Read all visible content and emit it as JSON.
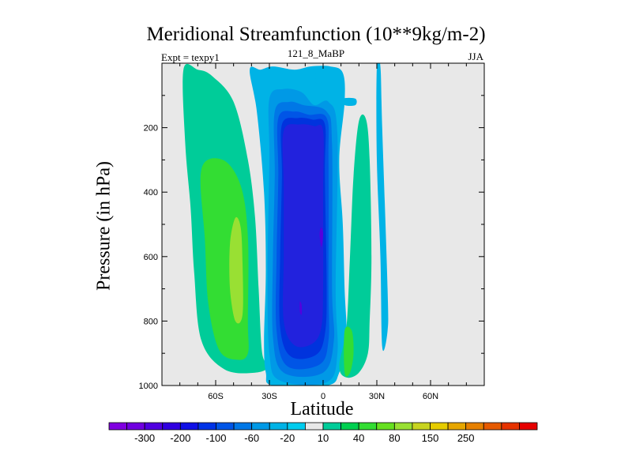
{
  "chart_data": {
    "type": "contour",
    "title": "Meridional Streamfunction (10**9kg/m-2)",
    "left_subtitle": "Expt = texpy1",
    "center_subtitle": "121_8_MaBP",
    "right_subtitle": "JJA",
    "xlabel": "Latitude",
    "ylabel": "Pressure (in hPa)",
    "xlim": [
      -90,
      90
    ],
    "ylim": [
      0,
      1000
    ],
    "y_inverted": true,
    "x_ticks": [
      {
        "value": -60,
        "label": "60S"
      },
      {
        "value": -30,
        "label": "30S"
      },
      {
        "value": 0,
        "label": "0"
      },
      {
        "value": 30,
        "label": "30N"
      },
      {
        "value": 60,
        "label": "60N"
      }
    ],
    "y_ticks": [
      {
        "value": 200,
        "label": "200"
      },
      {
        "value": 400,
        "label": "400"
      },
      {
        "value": 600,
        "label": "600"
      },
      {
        "value": 800,
        "label": "800"
      },
      {
        "value": 1000,
        "label": "1000"
      }
    ],
    "background_color": "#e8e8e8",
    "contour_fills": [
      {
        "level": 10,
        "color": "#00cc99",
        "points": [
          [
            -78,
            20
          ],
          [
            -70,
            20
          ],
          [
            -62,
            40
          ],
          [
            -50,
            120
          ],
          [
            -42,
            300
          ],
          [
            -38,
            480
          ],
          [
            -36,
            700
          ],
          [
            -34,
            900
          ],
          [
            -30,
            940
          ],
          [
            -38,
            960
          ],
          [
            -55,
            950
          ],
          [
            -68,
            860
          ],
          [
            -72,
            650
          ],
          [
            -74,
            450
          ],
          [
            -77,
            250
          ]
        ]
      },
      {
        "level": 20,
        "color": "#33dd33",
        "points": [
          [
            -68,
            330
          ],
          [
            -56,
            300
          ],
          [
            -46,
            380
          ],
          [
            -42,
            540
          ],
          [
            -42,
            800
          ],
          [
            -42,
            900
          ],
          [
            -48,
            920
          ],
          [
            -58,
            890
          ],
          [
            -64,
            750
          ],
          [
            -66,
            550
          ]
        ]
      },
      {
        "level": 40,
        "color": "#99e033",
        "points": [
          [
            -49,
            480
          ],
          [
            -46,
            510
          ],
          [
            -45,
            620
          ],
          [
            -45,
            780
          ],
          [
            -49,
            800
          ],
          [
            -52,
            700
          ],
          [
            -52,
            560
          ]
        ]
      },
      {
        "level": -10,
        "color": "#00b3e6",
        "points": [
          [
            -41,
            20
          ],
          [
            -35,
            20
          ],
          [
            -28,
            10
          ],
          [
            -16,
            20
          ],
          [
            -7,
            10
          ],
          [
            4,
            10
          ],
          [
            11,
            30
          ],
          [
            12,
            120
          ],
          [
            9,
            300
          ],
          [
            11,
            500
          ],
          [
            12,
            700
          ],
          [
            13,
            860
          ],
          [
            9,
            960
          ],
          [
            2,
            1000
          ],
          [
            -28,
            1000
          ],
          [
            -32,
            960
          ],
          [
            -33,
            860
          ],
          [
            -32,
            640
          ],
          [
            -33,
            400
          ],
          [
            -37,
            150
          ]
        ]
      },
      {
        "level": -10,
        "color": "#00b3e6",
        "points": [
          [
            -4,
            20
          ],
          [
            -1,
            20
          ],
          [
            -1,
            60
          ],
          [
            -4,
            60
          ]
        ]
      },
      {
        "level": -10,
        "color": "#00b3e6",
        "points": [
          [
            30,
            10
          ],
          [
            32,
            10
          ],
          [
            33,
            200
          ],
          [
            36,
            700
          ],
          [
            36,
            830
          ],
          [
            33,
            880
          ],
          [
            32,
            600
          ],
          [
            30,
            300
          ]
        ]
      },
      {
        "level": -10,
        "color": "#00b3e6",
        "points": [
          [
            11,
            110
          ],
          [
            18,
            110
          ],
          [
            18,
            130
          ],
          [
            12,
            130
          ]
        ]
      },
      {
        "level": 10,
        "color": "#00cc99",
        "points": [
          [
            20,
            180
          ],
          [
            24,
            175
          ],
          [
            26,
            300
          ],
          [
            27,
            600
          ],
          [
            26,
            800
          ],
          [
            25,
            900
          ],
          [
            20,
            960
          ],
          [
            13,
            975
          ],
          [
            9,
            940
          ],
          [
            13,
            820
          ],
          [
            15,
            600
          ],
          [
            17,
            350
          ]
        ]
      },
      {
        "level": 20,
        "color": "#33dd33",
        "points": [
          [
            12,
            830
          ],
          [
            16,
            830
          ],
          [
            17,
            900
          ],
          [
            15,
            960
          ],
          [
            12,
            960
          ]
        ]
      },
      {
        "level": -20,
        "color": "#0099e6",
        "points": [
          [
            -30,
            110
          ],
          [
            -22,
            80
          ],
          [
            -12,
            90
          ],
          [
            -5,
            130
          ],
          [
            3,
            120
          ],
          [
            8,
            220
          ],
          [
            7,
            700
          ],
          [
            8,
            900
          ],
          [
            2,
            990
          ],
          [
            -24,
            985
          ],
          [
            -30,
            900
          ],
          [
            -31,
            650
          ],
          [
            -30,
            300
          ]
        ]
      },
      {
        "level": -40,
        "color": "#0077e6",
        "points": [
          [
            -27,
            150
          ],
          [
            -19,
            120
          ],
          [
            -11,
            130
          ],
          [
            2,
            150
          ],
          [
            5,
            250
          ],
          [
            5,
            700
          ],
          [
            6,
            860
          ],
          [
            0,
            960
          ],
          [
            -22,
            960
          ],
          [
            -28,
            850
          ],
          [
            -28,
            600
          ],
          [
            -27,
            350
          ]
        ]
      },
      {
        "level": -60,
        "color": "#0055e6",
        "points": [
          [
            -25,
            170
          ],
          [
            -16,
            150
          ],
          [
            -8,
            160
          ],
          [
            2,
            170
          ],
          [
            3,
            300
          ],
          [
            3,
            700
          ],
          [
            3,
            860
          ],
          [
            -2,
            935
          ],
          [
            -20,
            940
          ],
          [
            -26,
            830
          ],
          [
            -26,
            600
          ],
          [
            -25,
            350
          ]
        ]
      },
      {
        "level": -80,
        "color": "#0033dd",
        "points": [
          [
            -23,
            190
          ],
          [
            -14,
            170
          ],
          [
            -6,
            175
          ],
          [
            1,
            190
          ],
          [
            1,
            350
          ],
          [
            2,
            700
          ],
          [
            1,
            840
          ],
          [
            -4,
            905
          ],
          [
            -18,
            910
          ],
          [
            -24,
            820
          ],
          [
            -24,
            600
          ],
          [
            -23,
            350
          ]
        ]
      },
      {
        "level": -100,
        "color": "#2222dd",
        "points": [
          [
            -22,
            210
          ],
          [
            -13,
            190
          ],
          [
            -5,
            195
          ],
          [
            0,
            210
          ],
          [
            0,
            400
          ],
          [
            0,
            700
          ],
          [
            -1,
            820
          ],
          [
            -6,
            870
          ],
          [
            -16,
            875
          ],
          [
            -22,
            800
          ],
          [
            -22,
            600
          ],
          [
            -22,
            380
          ]
        ]
      },
      {
        "level": -200,
        "color": "#5500dd",
        "points": [
          [
            -1,
            510
          ],
          [
            0,
            530
          ],
          [
            -1,
            570
          ],
          [
            -2,
            530
          ]
        ]
      },
      {
        "level": -200,
        "color": "#5500dd",
        "points": [
          [
            -13,
            740
          ],
          [
            -12,
            750
          ],
          [
            -12,
            780
          ],
          [
            -13,
            770
          ]
        ]
      }
    ],
    "colorbar": {
      "colors": [
        "#8000e0",
        "#7000e0",
        "#5000e0",
        "#3000e0",
        "#1010e6",
        "#0033e6",
        "#0055e6",
        "#0077e6",
        "#0099e6",
        "#00b3e6",
        "#00ccee",
        "#e8e8e8",
        "#00cc99",
        "#00d050",
        "#33dd33",
        "#66e020",
        "#99e033",
        "#c8d420",
        "#e6cc00",
        "#e6a600",
        "#e68000",
        "#e65a00",
        "#e63300",
        "#e60000"
      ],
      "labels": [
        {
          "after_box": 1,
          "label": "-300"
        },
        {
          "after_box": 3,
          "label": "-200"
        },
        {
          "after_box": 5,
          "label": "-100"
        },
        {
          "after_box": 7,
          "label": "-60"
        },
        {
          "after_box": 9,
          "label": "-20"
        },
        {
          "after_box": 11,
          "label": "10"
        },
        {
          "after_box": 13,
          "label": "40"
        },
        {
          "after_box": 15,
          "label": "80"
        },
        {
          "after_box": 17,
          "label": "150"
        },
        {
          "after_box": 19,
          "label": "250"
        }
      ]
    }
  }
}
